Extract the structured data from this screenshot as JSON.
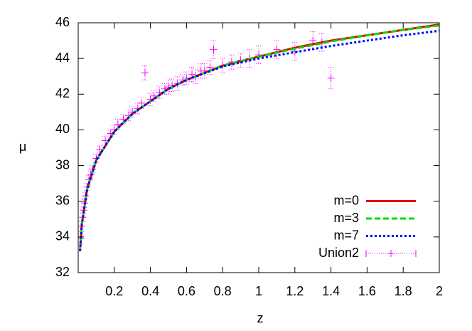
{
  "chart_data": {
    "type": "line",
    "x_label": "z",
    "y_label": "μ",
    "xlim": [
      0,
      2
    ],
    "ylim": [
      32,
      46
    ],
    "xticks": [
      0.2,
      0.4,
      0.6,
      0.8,
      1,
      1.2,
      1.4,
      1.6,
      1.8,
      2
    ],
    "yticks": [
      32,
      34,
      36,
      38,
      40,
      42,
      44,
      46
    ],
    "legend": "lower right",
    "series": [
      {
        "name": "m=0",
        "color": "#e00000",
        "style": "solid",
        "x": [
          0.01,
          0.02,
          0.05,
          0.1,
          0.2,
          0.3,
          0.4,
          0.5,
          0.6,
          0.8,
          1.0,
          1.2,
          1.4,
          1.6,
          1.8,
          2.0
        ],
        "values": [
          33.2,
          34.7,
          36.7,
          38.3,
          39.9,
          40.9,
          41.6,
          42.3,
          42.8,
          43.6,
          44.1,
          44.6,
          45.0,
          45.3,
          45.6,
          45.9
        ]
      },
      {
        "name": "m=3",
        "color": "#00dd00",
        "style": "dashed",
        "x": [
          0.01,
          0.02,
          0.05,
          0.1,
          0.2,
          0.3,
          0.4,
          0.5,
          0.6,
          0.8,
          1.0,
          1.2,
          1.4,
          1.6,
          1.8,
          2.0
        ],
        "values": [
          33.2,
          34.7,
          36.7,
          38.3,
          39.9,
          40.9,
          41.6,
          42.3,
          42.8,
          43.6,
          44.1,
          44.55,
          44.95,
          45.3,
          45.6,
          45.85
        ]
      },
      {
        "name": "m=7",
        "color": "#0000ff",
        "style": "dotted",
        "x": [
          0.01,
          0.02,
          0.05,
          0.1,
          0.2,
          0.3,
          0.4,
          0.5,
          0.6,
          0.8,
          1.0,
          1.2,
          1.4,
          1.6,
          1.8,
          2.0
        ],
        "values": [
          33.2,
          34.7,
          36.7,
          38.3,
          39.9,
          40.9,
          41.6,
          42.3,
          42.8,
          43.55,
          44.0,
          44.35,
          44.7,
          45.0,
          45.3,
          45.55
        ]
      },
      {
        "name": "Union2",
        "color": "#ff00ff",
        "style": "errorbars",
        "x": [
          0.015,
          0.02,
          0.025,
          0.03,
          0.035,
          0.04,
          0.05,
          0.06,
          0.07,
          0.08,
          0.1,
          0.12,
          0.15,
          0.18,
          0.2,
          0.22,
          0.25,
          0.28,
          0.3,
          0.33,
          0.35,
          0.37,
          0.4,
          0.42,
          0.45,
          0.48,
          0.5,
          0.52,
          0.55,
          0.58,
          0.6,
          0.63,
          0.65,
          0.68,
          0.7,
          0.73,
          0.75,
          0.8,
          0.85,
          0.9,
          0.95,
          1.0,
          1.1,
          1.2,
          1.3,
          1.35,
          1.4
        ],
        "values": [
          33.9,
          34.6,
          35.1,
          35.5,
          35.9,
          36.3,
          36.8,
          37.2,
          37.5,
          37.8,
          38.4,
          38.9,
          39.4,
          39.8,
          40.0,
          40.3,
          40.6,
          40.8,
          41.0,
          41.2,
          41.5,
          43.2,
          41.7,
          41.9,
          42.1,
          42.3,
          42.4,
          42.5,
          42.6,
          42.8,
          42.9,
          43.1,
          43.0,
          43.3,
          43.3,
          43.5,
          44.5,
          43.6,
          43.8,
          43.9,
          44.0,
          44.2,
          44.5,
          44.4,
          45.0,
          44.9,
          42.9
        ],
        "errors": [
          0.3,
          0.3,
          0.25,
          0.2,
          0.25,
          0.2,
          0.2,
          0.25,
          0.2,
          0.2,
          0.25,
          0.2,
          0.25,
          0.2,
          0.25,
          0.3,
          0.25,
          0.3,
          0.3,
          0.3,
          0.3,
          0.4,
          0.35,
          0.3,
          0.35,
          0.3,
          0.4,
          0.35,
          0.4,
          0.3,
          0.35,
          0.4,
          0.4,
          0.4,
          0.4,
          0.4,
          0.5,
          0.4,
          0.4,
          0.4,
          0.5,
          0.5,
          0.5,
          0.5,
          0.5,
          0.5,
          0.6
        ]
      }
    ]
  }
}
